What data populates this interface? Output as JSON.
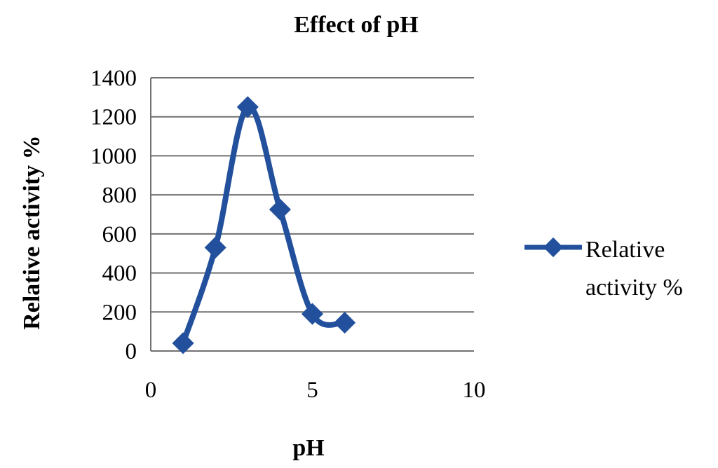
{
  "chart_data": {
    "type": "line",
    "title": "Effect of pH",
    "xlabel": "pH",
    "ylabel": "Relative activity %",
    "xlim": [
      0,
      10
    ],
    "ylim": [
      0,
      1400
    ],
    "xticks": [
      0,
      5,
      10
    ],
    "yticks": [
      0,
      200,
      400,
      600,
      800,
      1000,
      1200,
      1400
    ],
    "grid": "horizontal",
    "smooth": true,
    "legend_position": "right",
    "series": [
      {
        "name": "Relative activity %",
        "legend_lines": [
          "Relative",
          "activity %"
        ],
        "color": "#22509C",
        "marker": "diamond",
        "x": [
          1,
          2,
          3,
          4,
          5,
          6
        ],
        "y": [
          40,
          530,
          1250,
          725,
          190,
          145
        ]
      }
    ]
  }
}
